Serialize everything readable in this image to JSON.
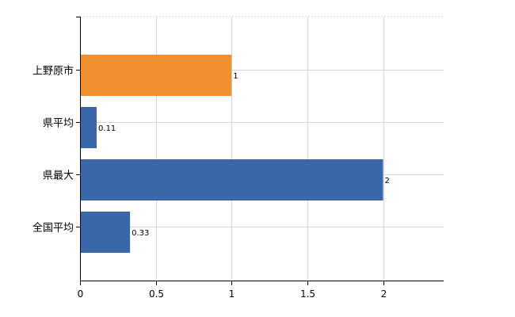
{
  "chart_data": {
    "type": "bar",
    "orientation": "horizontal",
    "categories": [
      "上野原市",
      "県平均",
      "県最大",
      "全国平均"
    ],
    "values": [
      1,
      0.11,
      2,
      0.33
    ],
    "data_labels": [
      "1",
      "0.11",
      "2",
      "0.33"
    ],
    "bar_colors": [
      "#f0902f",
      "#3a67a8",
      "#3a67a8",
      "#3a67a8"
    ],
    "xlim": [
      0,
      2.4
    ],
    "x_ticks": [
      0,
      0.5,
      1,
      1.5,
      2
    ],
    "x_tick_labels": [
      "0",
      "0.5",
      "1",
      "1.5",
      "2"
    ],
    "title": "",
    "xlabel": "",
    "ylabel": "",
    "grid": true,
    "legend": "none"
  }
}
